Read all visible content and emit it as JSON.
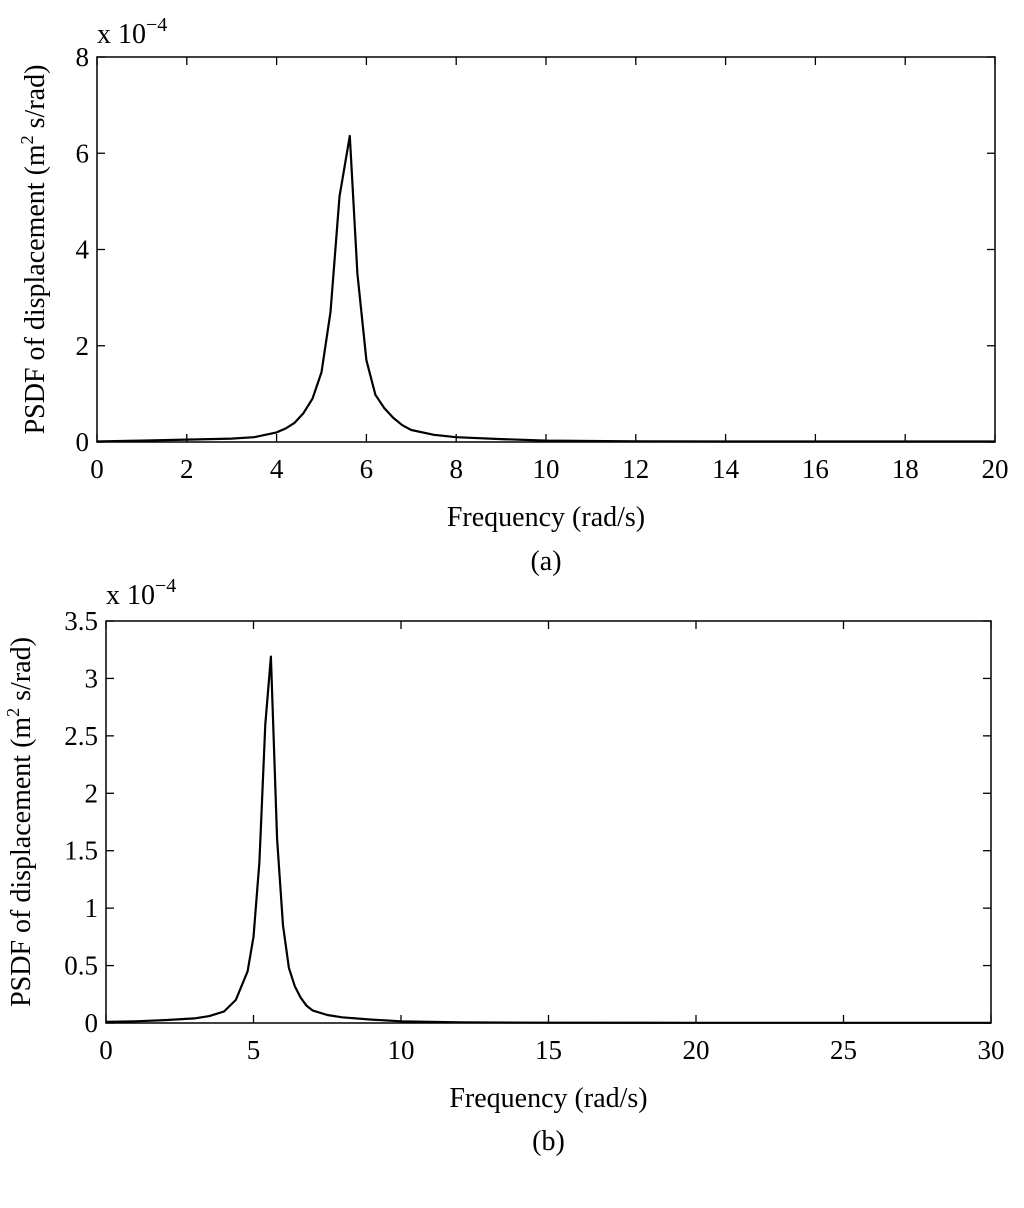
{
  "chart_data": [
    {
      "type": "line",
      "panel_label": "(a)",
      "xlabel": "Frequency (rad/s)",
      "ylabel": "PSDF of displacement (m² s/rad)",
      "ylabel_parts": {
        "pre": "PSDF of displacement (m",
        "sup": "2",
        "post": " s/rad)"
      },
      "y_multiplier": {
        "base": "x 10",
        "exp": "−4"
      },
      "xlim": [
        0,
        20
      ],
      "ylim": [
        0,
        8
      ],
      "xticks": [
        "0",
        "2",
        "4",
        "6",
        "8",
        "10",
        "12",
        "14",
        "16",
        "18",
        "20"
      ],
      "yticks": [
        "0",
        "2",
        "4",
        "6",
        "8"
      ],
      "grid": false,
      "series": [
        {
          "name": "PSDF",
          "x": [
            0,
            1,
            2,
            3,
            3.5,
            4,
            4.2,
            4.4,
            4.6,
            4.8,
            5.0,
            5.2,
            5.4,
            5.63,
            5.8,
            6.0,
            6.2,
            6.4,
            6.6,
            6.8,
            7,
            7.5,
            8,
            9,
            10,
            11,
            12,
            14,
            16,
            18,
            20
          ],
          "y": [
            0.01,
            0.03,
            0.05,
            0.07,
            0.1,
            0.2,
            0.28,
            0.4,
            0.6,
            0.9,
            1.45,
            2.7,
            5.1,
            6.36,
            3.5,
            1.7,
            0.98,
            0.7,
            0.5,
            0.35,
            0.25,
            0.15,
            0.1,
            0.06,
            0.03,
            0.02,
            0.015,
            0.01,
            0.01,
            0.01,
            0.01
          ]
        }
      ]
    },
    {
      "type": "line",
      "panel_label": "(b)",
      "xlabel": "Frequency (rad/s)",
      "ylabel": "PSDF of displacement (m² s/rad)",
      "ylabel_parts": {
        "pre": "PSDF of displacement (m",
        "sup": "2",
        "post": " s/rad)"
      },
      "y_multiplier": {
        "base": "x 10",
        "exp": "−4"
      },
      "xlim": [
        0,
        30
      ],
      "ylim": [
        0,
        3.5
      ],
      "xticks": [
        "0",
        "5",
        "10",
        "15",
        "20",
        "25",
        "30"
      ],
      "yticks": [
        "0",
        "0.5",
        "1",
        "1.5",
        "2",
        "2.5",
        "3",
        "3.5"
      ],
      "grid": false,
      "series": [
        {
          "name": "PSDF",
          "x": [
            0,
            1,
            2,
            3,
            3.5,
            4,
            4.4,
            4.8,
            5.0,
            5.2,
            5.4,
            5.59,
            5.8,
            6.0,
            6.2,
            6.4,
            6.6,
            6.8,
            7,
            7.5,
            8,
            9,
            10,
            11,
            12,
            15,
            20,
            25,
            30
          ],
          "y": [
            0.01,
            0.015,
            0.025,
            0.04,
            0.06,
            0.1,
            0.2,
            0.45,
            0.75,
            1.4,
            2.6,
            3.19,
            1.6,
            0.85,
            0.48,
            0.32,
            0.22,
            0.15,
            0.11,
            0.07,
            0.05,
            0.03,
            0.015,
            0.01,
            0.005,
            0.003,
            0.002,
            0.002,
            0.002
          ]
        }
      ]
    }
  ]
}
